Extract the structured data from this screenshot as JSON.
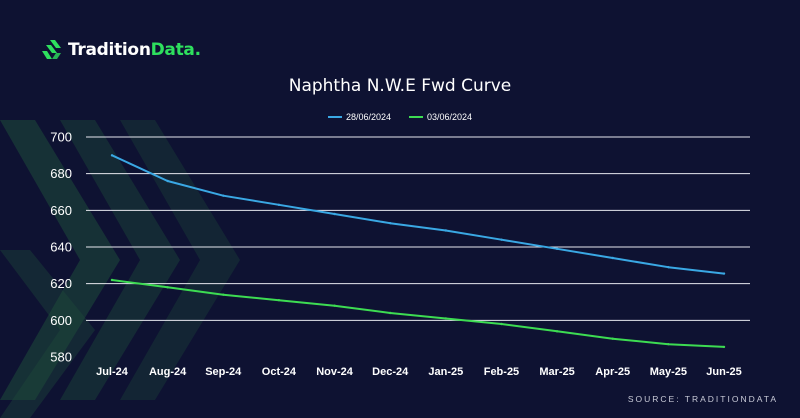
{
  "brand": {
    "name_main": "Tradition",
    "name_accent": "Data.",
    "accent_color": "#2ee05e"
  },
  "source": "SOURCE: TRADITIONDATA",
  "colors": {
    "background": "#0e1232",
    "grid": "#e6e7ee",
    "decor": "#1d4a3a"
  },
  "chart_data": {
    "type": "line",
    "title": "Naphtha N.W.E Fwd Curve",
    "categories": [
      "Jul-24",
      "Aug-24",
      "Sep-24",
      "Oct-24",
      "Nov-24",
      "Dec-24",
      "Jan-25",
      "Feb-25",
      "Mar-25",
      "Apr-25",
      "May-25",
      "Jun-25"
    ],
    "series": [
      {
        "name": "28/06/2024",
        "color": "#3aa8e4",
        "values": [
          690,
          676,
          668,
          663,
          658,
          653,
          649,
          644,
          639,
          634,
          629,
          625.5
        ]
      },
      {
        "name": "03/06/2024",
        "color": "#3ddc52",
        "values": [
          622,
          618,
          614,
          611,
          608,
          604,
          601,
          598,
          594,
          590,
          587,
          585.5
        ]
      }
    ],
    "yticks": [
      580,
      600,
      620,
      640,
      660,
      680,
      700
    ],
    "ylim": [
      580,
      700
    ],
    "grid": true,
    "legend_position": "top-center"
  }
}
